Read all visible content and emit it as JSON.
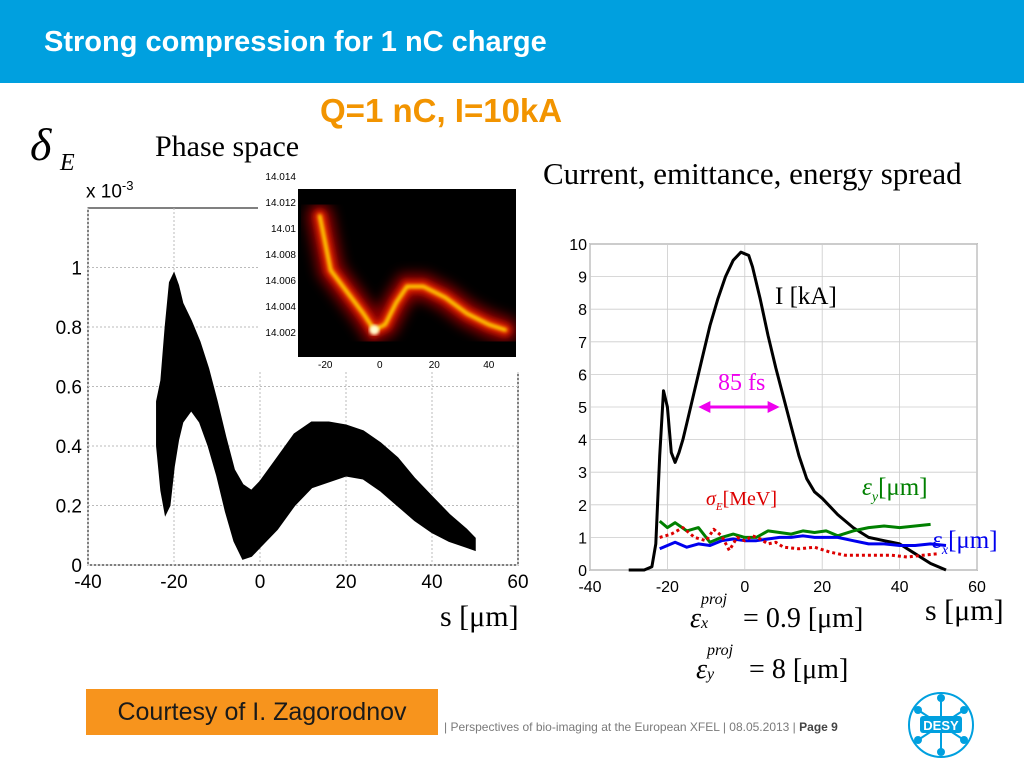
{
  "header": {
    "title": "Strong compression for 1 nC charge"
  },
  "subtitle": "Q=1 nC, I=10kA",
  "left_plot": {
    "label": "Phase space",
    "ylabel_symbol": "δ",
    "ylabel_sub": "E",
    "exponent_label": "x 10",
    "exponent_power": "-3",
    "xlabel": "s [μm]"
  },
  "right_plot": {
    "label": "Current, emittance, energy spread",
    "current_label": "I [kA]",
    "fs_label": "85 fs",
    "sigma_label": "σ",
    "sigma_sub": "E",
    "sigma_unit": "[MeV]",
    "epsy_label": "ε",
    "epsy_sub": "y",
    "epsy_unit": "[μm]",
    "epsx_label": "ε",
    "epsx_sub": "x",
    "epsx_unit": "[μm]",
    "xlabel": "s [μm]"
  },
  "formulas": {
    "fx_sym": "ε",
    "fx_sup": "proj",
    "fx_sub": "x",
    "fx_rhs": "= 0.9 [μm]",
    "fy_sym": "ε",
    "fy_sup": "proj",
    "fy_sub": "y",
    "fy_rhs": "= 8 [μm]"
  },
  "courtesy": "Courtesy of I. Zagorodnov",
  "footer": {
    "text": "|  Perspectives of bio-imaging at the European XFEL  |  08.05.2013  |",
    "page": "Page 9"
  },
  "logo": {
    "text": "DESY"
  },
  "chart_data": [
    {
      "type": "scatter",
      "name": "phase-space",
      "xlim": [
        -40,
        60
      ],
      "ylim": [
        0,
        1.2
      ],
      "xticks": [
        "-40",
        "-20",
        "0",
        "20",
        "40",
        "60"
      ],
      "yticks": [
        "0",
        "0.2",
        "0.4",
        "0.6",
        "0.8",
        "1"
      ],
      "grid": true,
      "upper_edge": [
        [
          -24,
          0.55
        ],
        [
          -23,
          0.62
        ],
        [
          -22,
          0.8
        ],
        [
          -21,
          0.95
        ],
        [
          -20,
          0.98
        ],
        [
          -19,
          0.94
        ],
        [
          -18,
          0.88
        ],
        [
          -16,
          0.82
        ],
        [
          -14,
          0.75
        ],
        [
          -12,
          0.66
        ],
        [
          -10,
          0.55
        ],
        [
          -8,
          0.43
        ],
        [
          -6,
          0.32
        ],
        [
          -4,
          0.27
        ],
        [
          -2,
          0.25
        ],
        [
          0,
          0.28
        ],
        [
          4,
          0.36
        ],
        [
          8,
          0.44
        ],
        [
          12,
          0.48
        ],
        [
          16,
          0.48
        ],
        [
          20,
          0.47
        ],
        [
          24,
          0.45
        ],
        [
          28,
          0.41
        ],
        [
          32,
          0.36
        ],
        [
          36,
          0.29
        ],
        [
          40,
          0.23
        ],
        [
          44,
          0.17
        ],
        [
          48,
          0.12
        ],
        [
          50,
          0.09
        ]
      ],
      "lower_edge": [
        [
          -24,
          0.4
        ],
        [
          -23,
          0.25
        ],
        [
          -22,
          0.17
        ],
        [
          -21,
          0.2
        ],
        [
          -20,
          0.33
        ],
        [
          -19,
          0.42
        ],
        [
          -18,
          0.48
        ],
        [
          -16,
          0.52
        ],
        [
          -14,
          0.48
        ],
        [
          -12,
          0.4
        ],
        [
          -10,
          0.3
        ],
        [
          -8,
          0.18
        ],
        [
          -6,
          0.08
        ],
        [
          -4,
          0.02
        ],
        [
          -2,
          0.03
        ],
        [
          0,
          0.06
        ],
        [
          4,
          0.12
        ],
        [
          8,
          0.2
        ],
        [
          12,
          0.26
        ],
        [
          16,
          0.28
        ],
        [
          20,
          0.3
        ],
        [
          24,
          0.29
        ],
        [
          28,
          0.25
        ],
        [
          32,
          0.2
        ],
        [
          36,
          0.15
        ],
        [
          40,
          0.11
        ],
        [
          44,
          0.08
        ],
        [
          48,
          0.06
        ],
        [
          50,
          0.05
        ]
      ]
    },
    {
      "type": "heatmap",
      "name": "phase-space-inset",
      "xticks": [
        "-20",
        "0",
        "20",
        "40"
      ],
      "yticks": [
        "14.014",
        "14.012",
        "14.01",
        "14.008",
        "14.006",
        "14.004",
        "14.002"
      ],
      "ridge": [
        [
          -22,
          14.013
        ],
        [
          -18,
          14.008
        ],
        [
          -12,
          14.006
        ],
        [
          -6,
          14.004
        ],
        [
          -2,
          14.0025
        ],
        [
          2,
          14.003
        ],
        [
          6,
          14.005
        ],
        [
          10,
          14.0065
        ],
        [
          16,
          14.0065
        ],
        [
          24,
          14.0055
        ],
        [
          32,
          14.004
        ],
        [
          40,
          14.003
        ],
        [
          46,
          14.0025
        ]
      ]
    },
    {
      "type": "line",
      "name": "current-emittance-spread",
      "xlim": [
        -40,
        60
      ],
      "ylim": [
        0,
        10
      ],
      "xticks": [
        "-40",
        "-20",
        "0",
        "20",
        "40",
        "60"
      ],
      "yticks": [
        "0",
        "1",
        "2",
        "3",
        "4",
        "5",
        "6",
        "7",
        "8",
        "9",
        "10"
      ],
      "grid": true,
      "series": [
        {
          "name": "I [kA]",
          "color": "#000000",
          "dashed": false,
          "x": [
            -30,
            -26,
            -24,
            -23,
            -22,
            -21,
            -20,
            -19,
            -18,
            -17,
            -16,
            -15,
            -13,
            -11,
            -9,
            -7,
            -5,
            -3,
            -1,
            0,
            1,
            2,
            4,
            6,
            8,
            10,
            12,
            14,
            16,
            18,
            20,
            24,
            28,
            32,
            36,
            40,
            44,
            48,
            52
          ],
          "y": [
            0,
            0,
            0.1,
            0.8,
            3.5,
            5.5,
            5.0,
            3.6,
            3.3,
            3.6,
            4.0,
            4.5,
            5.5,
            6.5,
            7.5,
            8.3,
            9.0,
            9.5,
            9.75,
            9.7,
            9.65,
            9.3,
            8.3,
            7.2,
            6.2,
            5.3,
            4.4,
            3.5,
            2.8,
            2.4,
            2.2,
            1.7,
            1.3,
            1.0,
            0.9,
            0.8,
            0.5,
            0.2,
            0
          ]
        },
        {
          "name": "εy [μm]",
          "color": "#008000",
          "dashed": false,
          "x": [
            -22,
            -20,
            -18,
            -15,
            -12,
            -9,
            -6,
            -3,
            0,
            3,
            6,
            9,
            12,
            15,
            18,
            21,
            24,
            28,
            32,
            36,
            40,
            44,
            48
          ],
          "y": [
            1.5,
            1.3,
            1.45,
            1.2,
            1.3,
            0.85,
            1.0,
            1.1,
            1.0,
            1.0,
            1.2,
            1.15,
            1.1,
            1.2,
            1.15,
            1.2,
            1.05,
            1.2,
            1.3,
            1.35,
            1.3,
            1.35,
            1.4
          ]
        },
        {
          "name": "εx [μm]",
          "color": "#0000ee",
          "dashed": false,
          "x": [
            -22,
            -20,
            -18,
            -15,
            -12,
            -9,
            -6,
            -3,
            0,
            3,
            6,
            9,
            12,
            15,
            18,
            21,
            24,
            28,
            32,
            36,
            40,
            44,
            48,
            52
          ],
          "y": [
            0.65,
            0.75,
            0.85,
            0.7,
            0.8,
            0.75,
            0.9,
            0.95,
            0.9,
            0.9,
            0.95,
            1.0,
            1.0,
            1.05,
            1.0,
            1.0,
            1.0,
            0.9,
            0.8,
            0.8,
            0.75,
            0.75,
            0.8,
            0.75
          ]
        },
        {
          "name": "σE [MeV]",
          "color": "#dd0000",
          "dashed": true,
          "x": [
            -22,
            -19,
            -16,
            -13,
            -10,
            -8,
            -6,
            -4,
            -2,
            0,
            2,
            4,
            6,
            8,
            10,
            14,
            18,
            22,
            26,
            30,
            34,
            38,
            42,
            46,
            50
          ],
          "y": [
            1.0,
            1.1,
            1.3,
            1.0,
            0.9,
            1.25,
            1.05,
            0.6,
            1.0,
            0.9,
            1.05,
            0.95,
            0.8,
            0.85,
            0.7,
            0.65,
            0.7,
            0.55,
            0.45,
            0.45,
            0.45,
            0.45,
            0.4,
            0.45,
            0.5
          ]
        }
      ],
      "annotations": [
        {
          "text": "85 fs",
          "from": -12,
          "to": 9,
          "y": 5.0,
          "color": "#ee00ee"
        }
      ]
    }
  ]
}
